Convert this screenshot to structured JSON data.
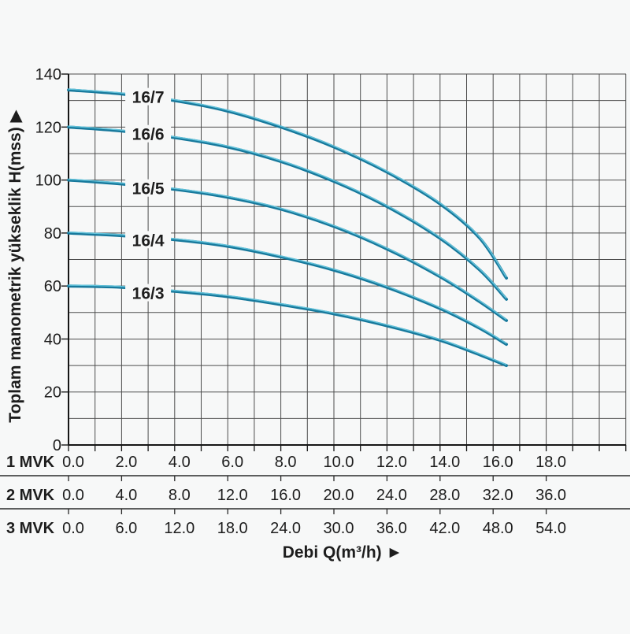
{
  "page": {
    "background": "#f7f8f8"
  },
  "chart_data": {
    "type": "line",
    "title": "",
    "ylabel": "Toplam manometrik yükseklik H(mss) ▶",
    "xlabel": "Debi Q(m³/h) ►",
    "ylim": [
      0,
      140
    ],
    "y_ticks": [
      "0",
      "20",
      "40",
      "60",
      "80",
      "100",
      "120",
      "140"
    ],
    "y_tick_values": [
      0,
      20,
      40,
      60,
      80,
      100,
      120,
      140
    ],
    "y_minor_step": 10,
    "grid": true,
    "legend_position": "labels-on-curves",
    "x_axis_rows": [
      {
        "label": "1 MVK",
        "values": [
          "0.0",
          "2.0",
          "4.0",
          "6.0",
          "8.0",
          "10.0",
          "12.0",
          "14.0",
          "16.0",
          "18.0"
        ]
      },
      {
        "label": "2 MVK",
        "values": [
          "0.0",
          "4.0",
          "8.0",
          "12.0",
          "16.0",
          "20.0",
          "24.0",
          "28.0",
          "32.0",
          "36.0"
        ]
      },
      {
        "label": "3 MVK",
        "values": [
          "0.0",
          "6.0",
          "12.0",
          "18.0",
          "24.0",
          "30.0",
          "36.0",
          "42.0",
          "48.0",
          "54.0"
        ]
      }
    ],
    "x_primary_tick_step": 2,
    "x_primary_minor_step": 1,
    "x_grid_max_units": 21,
    "series": [
      {
        "name": "16/7",
        "label_at": [
          3.0,
          131.5
        ],
        "points": [
          [
            0,
            134
          ],
          [
            2,
            132.5
          ],
          [
            4,
            130
          ],
          [
            6,
            126
          ],
          [
            8,
            120
          ],
          [
            10,
            112.5
          ],
          [
            12,
            103
          ],
          [
            14,
            91
          ],
          [
            15.5,
            78
          ],
          [
            16.5,
            63
          ]
        ]
      },
      {
        "name": "16/6",
        "label_at": [
          3.0,
          117.5
        ],
        "points": [
          [
            0,
            120
          ],
          [
            2,
            118.5
          ],
          [
            4,
            116
          ],
          [
            6,
            112.5
          ],
          [
            8,
            107
          ],
          [
            10,
            99.5
          ],
          [
            12,
            90
          ],
          [
            14,
            78
          ],
          [
            15.5,
            66
          ],
          [
            16.5,
            55
          ]
        ]
      },
      {
        "name": "16/5",
        "label_at": [
          3.0,
          97
        ],
        "points": [
          [
            0,
            100
          ],
          [
            2,
            98.5
          ],
          [
            4,
            96.5
          ],
          [
            6,
            93.5
          ],
          [
            8,
            89
          ],
          [
            10,
            82.5
          ],
          [
            12,
            74
          ],
          [
            14,
            63.5
          ],
          [
            15.5,
            54
          ],
          [
            16.5,
            47
          ]
        ]
      },
      {
        "name": "16/4",
        "label_at": [
          3.0,
          77.5
        ],
        "points": [
          [
            0,
            80
          ],
          [
            2,
            79
          ],
          [
            4,
            77.5
          ],
          [
            6,
            75
          ],
          [
            8,
            71
          ],
          [
            10,
            66
          ],
          [
            12,
            59.5
          ],
          [
            14,
            51.5
          ],
          [
            15.5,
            44
          ],
          [
            16.5,
            38
          ]
        ]
      },
      {
        "name": "16/3",
        "label_at": [
          3.0,
          57.5
        ],
        "points": [
          [
            0,
            60
          ],
          [
            2,
            59.5
          ],
          [
            4,
            58
          ],
          [
            6,
            56
          ],
          [
            8,
            53
          ],
          [
            10,
            49.5
          ],
          [
            12,
            45
          ],
          [
            14,
            39.5
          ],
          [
            15.5,
            34
          ],
          [
            16.5,
            30
          ]
        ]
      }
    ],
    "colors": {
      "curve": "#17799c",
      "curve_highlight": "#66c6dd",
      "grid": "#4d4d4d",
      "axis": "#161616",
      "separator": "#2a2a2a",
      "text": "#1d1d1d",
      "halo": "#f7f8f8"
    }
  }
}
